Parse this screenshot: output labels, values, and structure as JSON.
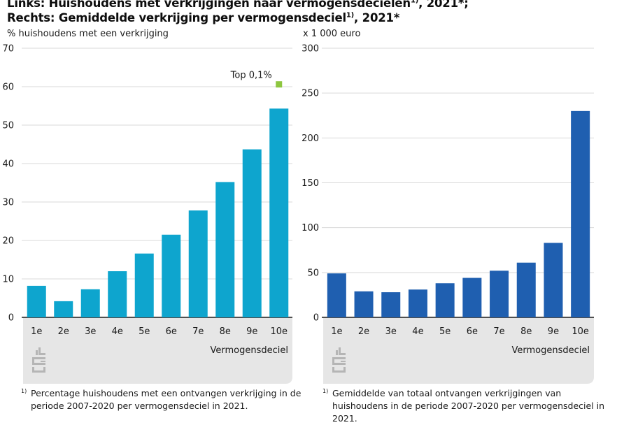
{
  "titles": {
    "line1": "Links: Huishoudens met verkrijgingen naar vermogensdecielen",
    "line1_sup": "1)",
    "line1_suffix": ", 2021*;",
    "line2": "Rechts: Gemiddelde verkrijging per vermogensdeciel",
    "line2_sup": "1)",
    "line2_suffix": ", 2021*"
  },
  "footnotes": {
    "marker": "1)",
    "left": "Percentage huishoudens met een ontvangen verkrijging in de periode 2007-2020 per vermogensdeciel in 2021.",
    "right": "Gemiddelde van totaal ontvangen verkrijgingen van huishoudens in de periode 2007-2020 per vermogensdeciel in 2021."
  },
  "colors": {
    "left_bar": "#0ea5ce",
    "right_bar": "#1f5fb0",
    "top_marker": "#8dc63f",
    "axis_band": "#e6e6e6",
    "gridline": "#d9d9d9"
  },
  "icons": [
    "cbs-logo-icon"
  ],
  "chart_data": [
    {
      "type": "bar",
      "categories": [
        "1e",
        "2e",
        "3e",
        "4e",
        "5e",
        "6e",
        "7e",
        "8e",
        "9e",
        "10e"
      ],
      "values": [
        8.2,
        4.2,
        7.3,
        12.0,
        16.6,
        21.5,
        27.8,
        35.2,
        43.7,
        54.3
      ],
      "annotation": {
        "label": "Top 0,1%",
        "category": "10e",
        "value": 60.6
      },
      "ylabel": "% huishoudens met een verkrijging",
      "xlabel": "Vermogensdeciel",
      "ylim": [
        0,
        70
      ],
      "yticks": [
        0,
        10,
        20,
        30,
        40,
        50,
        60,
        70
      ],
      "grid": true
    },
    {
      "type": "bar",
      "categories": [
        "1e",
        "2e",
        "3e",
        "4e",
        "5e",
        "6e",
        "7e",
        "8e",
        "9e",
        "10e"
      ],
      "values": [
        49,
        29,
        28,
        31,
        38,
        44,
        52,
        61,
        83,
        230
      ],
      "ylabel": "x 1 000 euro",
      "xlabel": "Vermogensdeciel",
      "ylim": [
        0,
        300
      ],
      "yticks": [
        0,
        50,
        100,
        150,
        200,
        250,
        300
      ],
      "grid": true
    }
  ]
}
